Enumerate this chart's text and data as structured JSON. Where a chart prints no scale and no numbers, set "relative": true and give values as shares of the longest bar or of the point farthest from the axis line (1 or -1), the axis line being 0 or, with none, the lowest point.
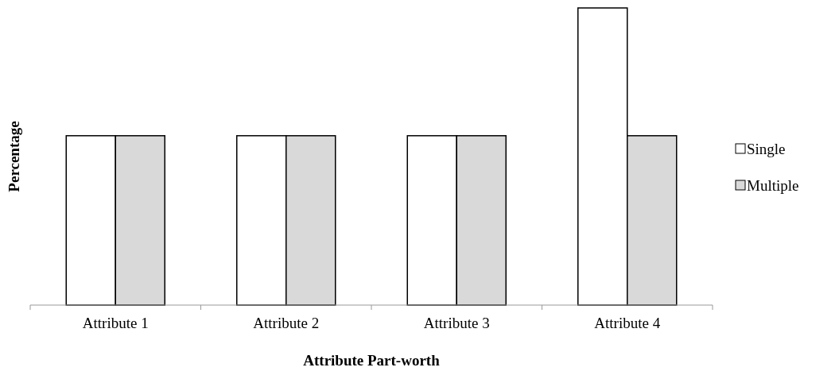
{
  "chart_data": {
    "type": "bar",
    "relative": true,
    "xlabel": "Attribute Part-worth",
    "ylabel": "Percentage",
    "categories": [
      "Attribute 1",
      "Attribute 2",
      "Attribute 3",
      "Attribute 4"
    ],
    "series": [
      {
        "name": "Single",
        "color": "#ffffff",
        "values": [
          0.57,
          0.57,
          0.57,
          1
        ]
      },
      {
        "name": "Multiple",
        "color": "#d9d9d9",
        "values": [
          0.57,
          0.57,
          0.57,
          0.57
        ]
      }
    ],
    "legend": "right"
  }
}
